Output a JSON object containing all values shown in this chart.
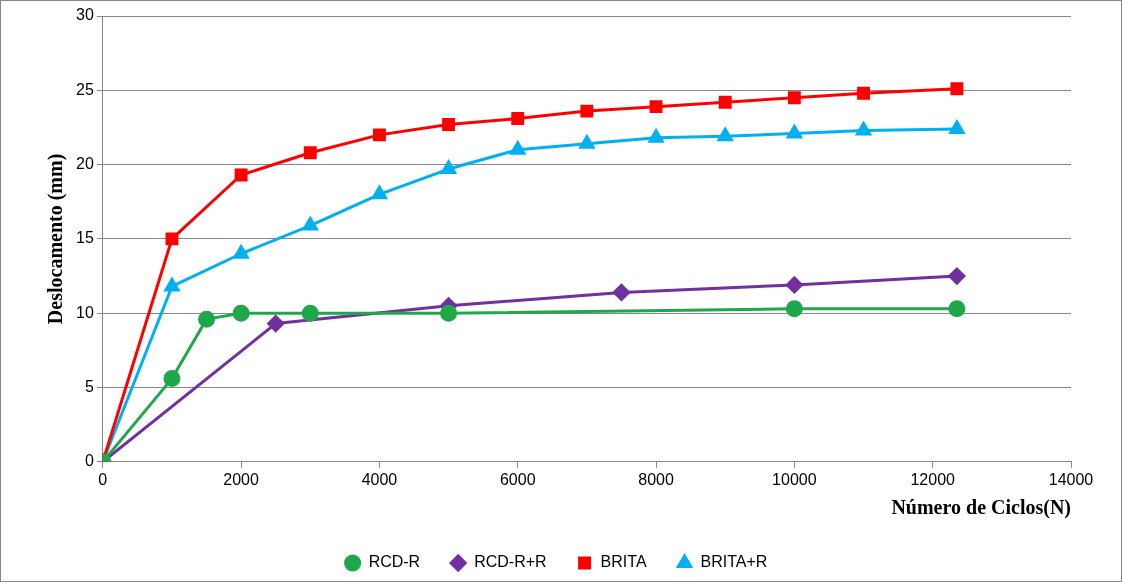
{
  "chart_data": {
    "type": "line",
    "xlabel": "Número de Ciclos(N)",
    "ylabel": "Deslocamento (mm)",
    "xlim": [
      0,
      14000
    ],
    "xticks": [
      0,
      2000,
      4000,
      6000,
      8000,
      10000,
      12000,
      14000
    ],
    "ylim": [
      0,
      30
    ],
    "yticks": [
      0,
      5,
      10,
      15,
      20,
      25,
      30
    ],
    "grid": "y",
    "legend": "bottom",
    "line_style": "solid",
    "series": [
      {
        "name": "RCD-R",
        "color": "#1fa84a",
        "marker": "circle",
        "x": [
          0,
          1000,
          1500,
          2000,
          3000,
          5000,
          10000,
          12350
        ],
        "values": [
          0,
          5.6,
          9.6,
          10.0,
          10.0,
          10.0,
          10.3,
          10.3
        ]
      },
      {
        "name": "RCD-R+R",
        "color": "#7030a0",
        "marker": "diamond",
        "x": [
          0,
          2500,
          5000,
          7500,
          10000,
          12350
        ],
        "values": [
          0,
          9.3,
          10.5,
          11.4,
          11.9,
          12.5
        ]
      },
      {
        "name": "BRITA",
        "color": "#ff0000",
        "marker": "square",
        "x": [
          0,
          1000,
          2000,
          3000,
          4000,
          5000,
          6000,
          7000,
          8000,
          9000,
          10000,
          11000,
          12350
        ],
        "values": [
          0,
          15.0,
          19.3,
          20.8,
          22.0,
          22.7,
          23.1,
          23.6,
          23.9,
          24.2,
          24.5,
          24.8,
          25.1
        ]
      },
      {
        "name": "BRITA+R",
        "color": "#00b0f0",
        "marker": "triangle",
        "x": [
          0,
          1000,
          2000,
          3000,
          4000,
          5000,
          6000,
          7000,
          8000,
          9000,
          10000,
          11000,
          12350
        ],
        "values": [
          0,
          11.8,
          14.0,
          15.9,
          18.0,
          19.7,
          21.0,
          21.4,
          21.8,
          21.9,
          22.1,
          22.3,
          22.4
        ]
      }
    ]
  }
}
